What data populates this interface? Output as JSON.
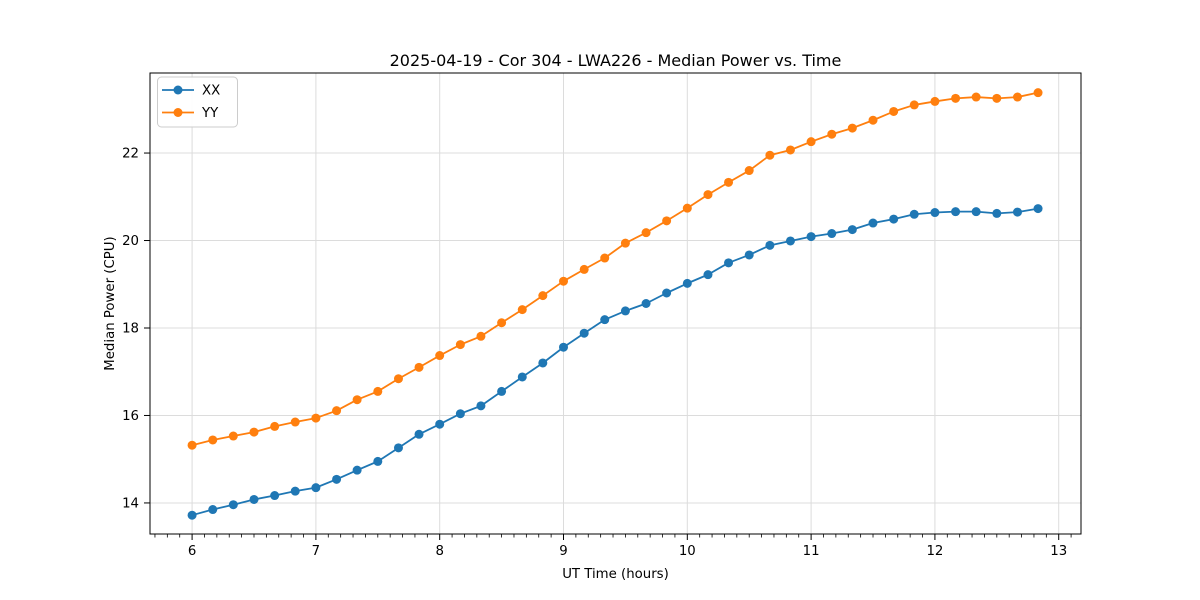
{
  "chart_data": {
    "type": "line",
    "title": "2025-04-19 - Cor 304 - LWA226 - Median Power vs. Time",
    "xlabel": "UT Time (hours)",
    "ylabel": "Median Power (CPU)",
    "xlim": [
      5.66,
      13.18
    ],
    "ylim": [
      13.29,
      23.83
    ],
    "x_major_ticks": [
      6,
      7,
      8,
      9,
      10,
      11,
      12,
      13
    ],
    "x_minor_step": 0.1,
    "y_major_ticks": [
      14,
      16,
      18,
      20,
      22
    ],
    "grid": true,
    "grid_color": "#dcdcdc",
    "legend_position": "upper-left",
    "x": [
      6.0,
      6.167,
      6.333,
      6.5,
      6.667,
      6.833,
      7.0,
      7.167,
      7.333,
      7.5,
      7.667,
      7.833,
      8.0,
      8.167,
      8.333,
      8.5,
      8.667,
      8.833,
      9.0,
      9.167,
      9.333,
      9.5,
      9.667,
      9.833,
      10.0,
      10.167,
      10.333,
      10.5,
      10.667,
      10.833,
      11.0,
      11.167,
      11.333,
      11.5,
      11.667,
      11.833,
      12.0,
      12.167,
      12.333,
      12.5,
      12.667,
      12.833
    ],
    "series": [
      {
        "name": "XX",
        "color": "#1f77b4",
        "values": [
          13.72,
          13.85,
          13.96,
          14.08,
          14.17,
          14.27,
          14.35,
          14.54,
          14.75,
          14.95,
          15.26,
          15.57,
          15.8,
          16.04,
          16.22,
          16.55,
          16.88,
          17.2,
          17.56,
          17.88,
          18.19,
          18.39,
          18.56,
          18.8,
          19.02,
          19.22,
          19.49,
          19.67,
          19.89,
          19.99,
          20.09,
          20.16,
          20.25,
          20.4,
          20.49,
          20.6,
          20.64,
          20.66,
          20.66,
          20.62,
          20.65,
          20.73
        ]
      },
      {
        "name": "YY",
        "color": "#ff7f0e",
        "values": [
          15.32,
          15.44,
          15.53,
          15.62,
          15.75,
          15.85,
          15.94,
          16.11,
          16.36,
          16.55,
          16.84,
          17.1,
          17.37,
          17.62,
          17.81,
          18.12,
          18.42,
          18.74,
          19.07,
          19.34,
          19.6,
          19.94,
          20.18,
          20.45,
          20.74,
          21.05,
          21.33,
          21.6,
          21.95,
          22.07,
          22.26,
          22.43,
          22.57,
          22.75,
          22.95,
          23.1,
          23.18,
          23.25,
          23.28,
          23.25,
          23.28,
          23.38
        ]
      }
    ]
  }
}
